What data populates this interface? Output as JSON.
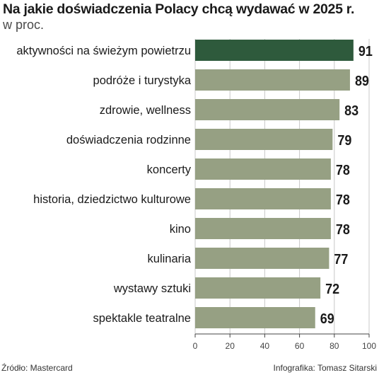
{
  "title": "Na jakie doświadczenia Polacy chcą wydawać w 2025 r.",
  "subtitle": "w proc.",
  "source": "Źródło: Mastercard",
  "credit": "Infografika: Tomasz Sitarski",
  "chart_data": {
    "type": "bar",
    "orientation": "horizontal",
    "title": "Na jakie doświadczenia Polacy chcą wydawać w 2025 r.",
    "subtitle": "w proc.",
    "categories": [
      "aktywności na świeżym powietrzu",
      "podróże i turystyka",
      "zdrowie, wellness",
      "doświadczenia rodzinne",
      "koncerty",
      "historia, dziedzictwo kulturowe",
      "kino",
      "kulinaria",
      "wystawy sztuki",
      "spektakle teatralne"
    ],
    "values": [
      91,
      89,
      83,
      79,
      78,
      78,
      78,
      77,
      72,
      69
    ],
    "xlim": [
      0,
      100
    ],
    "xticks": [
      "0",
      "20",
      "40",
      "60",
      "80",
      "100"
    ],
    "grid": true,
    "colors": {
      "highlight": "#2e5a3c",
      "bar": "#96a083",
      "grid": "#c8c8c8",
      "axis": "#444444"
    }
  }
}
